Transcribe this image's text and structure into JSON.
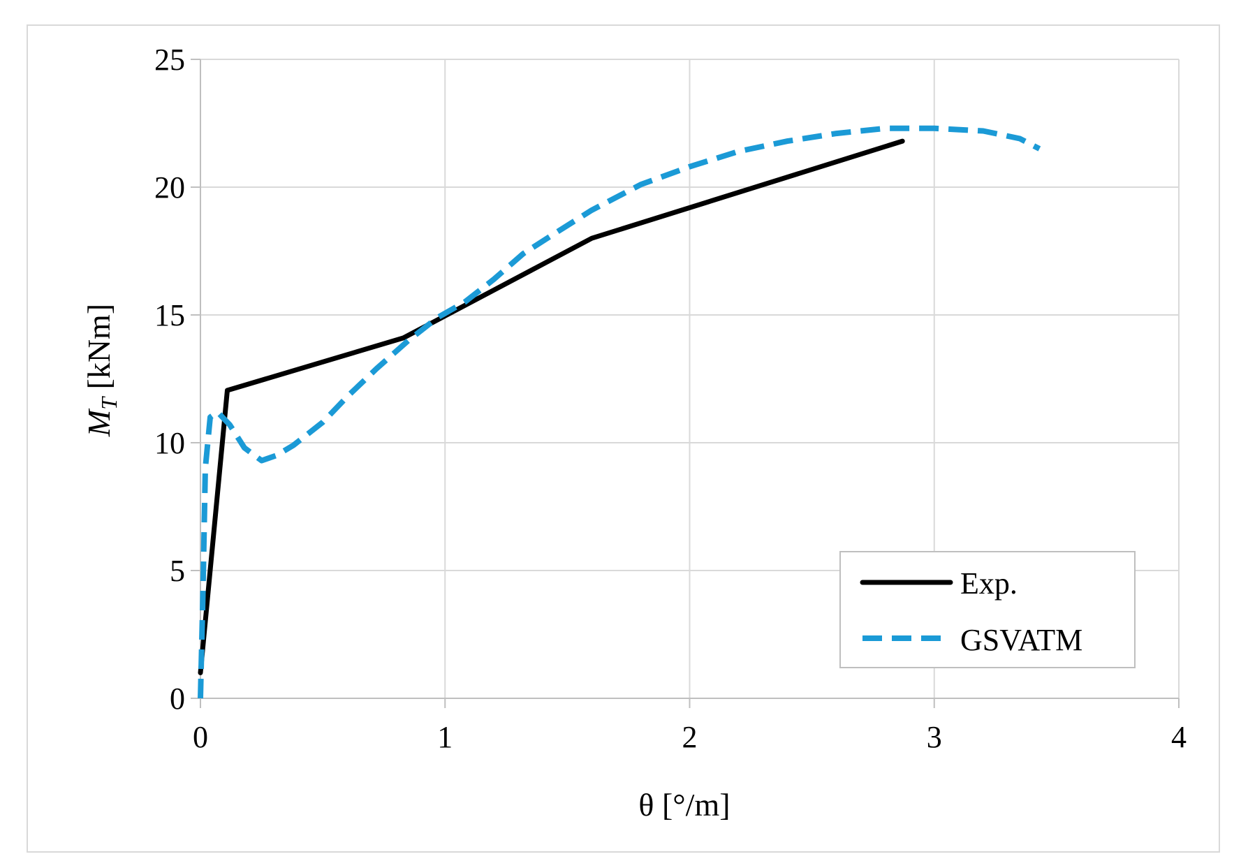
{
  "chart_data": {
    "type": "line",
    "title": "",
    "xlabel": "θ [°/m]",
    "ylabel_symbol": "M",
    "ylabel_subscript": "T",
    "ylabel_unit": " [kNm]",
    "xlim": [
      0,
      4
    ],
    "ylim": [
      0,
      25
    ],
    "xticks": [
      0,
      1,
      2,
      3,
      4
    ],
    "yticks": [
      0,
      5,
      10,
      15,
      20,
      25
    ],
    "xtick_labels": [
      "0",
      "1",
      "2",
      "3",
      "4"
    ],
    "ytick_labels": [
      "0",
      "5",
      "10",
      "15",
      "20",
      "25"
    ],
    "grid": true,
    "legend_position": "bottom-right",
    "series": [
      {
        "name": "Exp.",
        "style": "solid",
        "color": "#000000",
        "x": [
          0.0,
          0.11,
          0.83,
          1.6,
          2.87
        ],
        "y": [
          1.0,
          12.05,
          14.1,
          18.0,
          21.8
        ]
      },
      {
        "name": "GSVATM",
        "style": "dashed",
        "color": "#1b9ad6",
        "x": [
          0.0,
          0.01,
          0.02,
          0.04,
          0.07,
          0.12,
          0.18,
          0.25,
          0.31,
          0.38,
          0.5,
          0.6,
          0.72,
          0.85,
          0.97,
          1.08,
          1.2,
          1.32,
          1.45,
          1.6,
          1.8,
          2.0,
          2.2,
          2.4,
          2.6,
          2.8,
          3.0,
          3.2,
          3.35,
          3.43
        ],
        "y": [
          0.0,
          4.0,
          9.0,
          11.0,
          11.2,
          10.7,
          9.8,
          9.3,
          9.5,
          9.9,
          10.8,
          11.8,
          12.9,
          14.0,
          14.9,
          15.5,
          16.4,
          17.4,
          18.2,
          19.1,
          20.1,
          20.8,
          21.4,
          21.8,
          22.1,
          22.3,
          22.3,
          22.2,
          21.9,
          21.5
        ]
      }
    ]
  }
}
